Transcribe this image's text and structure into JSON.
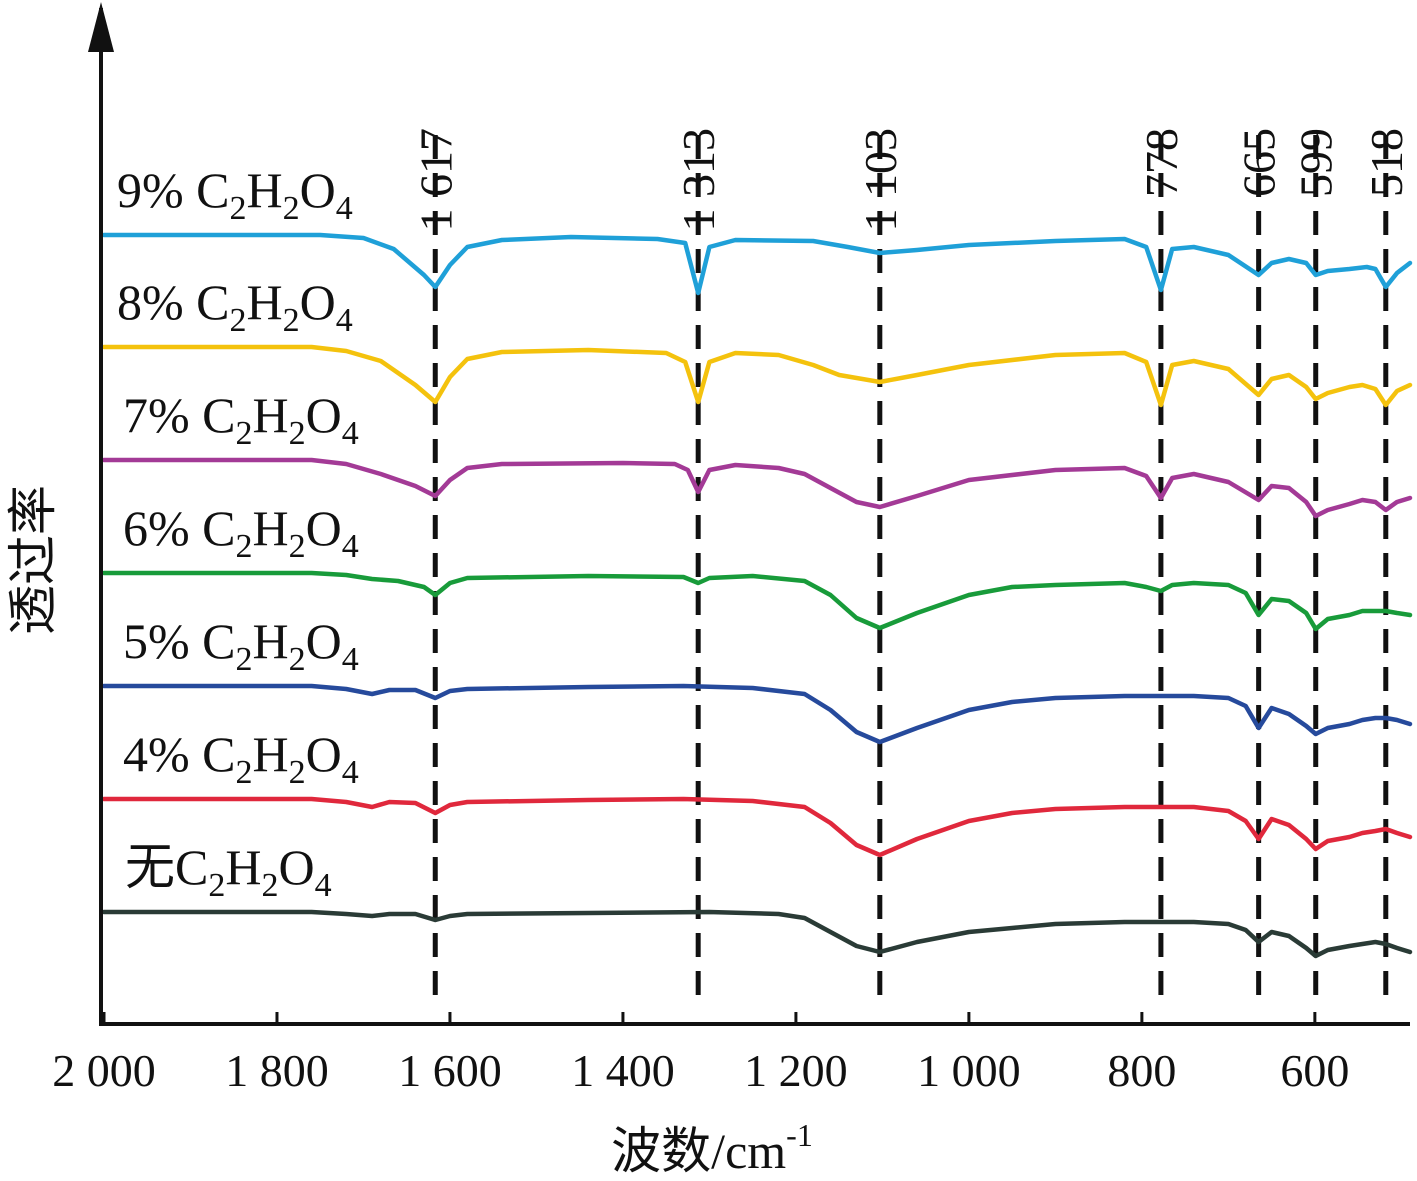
{
  "chart_data": {
    "type": "line",
    "title": "",
    "xlabel": "波数/cm",
    "xlabel_sup": "-1",
    "ylabel": "透过率",
    "x_reversed": true,
    "xlim": [
      2000,
      490
    ],
    "x_ticks": [
      2000,
      1800,
      1600,
      1400,
      1200,
      1000,
      800,
      600
    ],
    "x_tick_labels": [
      "2 000",
      "1 800",
      "1 600",
      "1 400",
      "1 200",
      "1 000",
      "800",
      "600"
    ],
    "y_ticks_shown": false,
    "grid": false,
    "peak_lines": [
      {
        "x": 1617,
        "label": "1 617"
      },
      {
        "x": 1313,
        "label": "1 313"
      },
      {
        "x": 1103,
        "label": "1 103"
      },
      {
        "x": 778,
        "label": "778"
      },
      {
        "x": 665,
        "label": "665"
      },
      {
        "x": 599,
        "label": "599"
      },
      {
        "x": 518,
        "label": "518"
      }
    ],
    "series": [
      {
        "name_main": "9% C",
        "name_sub1": "2",
        "name_mid": "H",
        "name_sub2": "2",
        "name_end": "O",
        "name_sub3": "4",
        "color": "#1fa0d8",
        "offset": 235,
        "points": [
          [
            2000,
            0
          ],
          [
            1750,
            0
          ],
          [
            1700,
            3
          ],
          [
            1665,
            14
          ],
          [
            1630,
            40
          ],
          [
            1617,
            52
          ],
          [
            1600,
            30
          ],
          [
            1580,
            12
          ],
          [
            1540,
            5
          ],
          [
            1460,
            2
          ],
          [
            1360,
            4
          ],
          [
            1328,
            8
          ],
          [
            1313,
            58
          ],
          [
            1300,
            12
          ],
          [
            1270,
            5
          ],
          [
            1180,
            6
          ],
          [
            1140,
            12
          ],
          [
            1103,
            18
          ],
          [
            1060,
            15
          ],
          [
            1000,
            10
          ],
          [
            900,
            6
          ],
          [
            820,
            4
          ],
          [
            795,
            12
          ],
          [
            778,
            55
          ],
          [
            765,
            14
          ],
          [
            740,
            12
          ],
          [
            700,
            20
          ],
          [
            665,
            40
          ],
          [
            650,
            28
          ],
          [
            630,
            24
          ],
          [
            610,
            28
          ],
          [
            599,
            40
          ],
          [
            585,
            36
          ],
          [
            560,
            34
          ],
          [
            540,
            32
          ],
          [
            530,
            34
          ],
          [
            518,
            52
          ],
          [
            505,
            38
          ],
          [
            490,
            28
          ]
        ]
      },
      {
        "name_main": "8% C",
        "name_sub1": "2",
        "name_mid": "H",
        "name_sub2": "2",
        "name_end": "O",
        "name_sub3": "4",
        "color": "#f4c20d",
        "offset": 347,
        "points": [
          [
            2000,
            0
          ],
          [
            1760,
            0
          ],
          [
            1720,
            4
          ],
          [
            1680,
            14
          ],
          [
            1640,
            38
          ],
          [
            1617,
            55
          ],
          [
            1600,
            30
          ],
          [
            1580,
            12
          ],
          [
            1540,
            5
          ],
          [
            1440,
            3
          ],
          [
            1350,
            6
          ],
          [
            1328,
            15
          ],
          [
            1313,
            55
          ],
          [
            1300,
            15
          ],
          [
            1270,
            6
          ],
          [
            1220,
            8
          ],
          [
            1180,
            18
          ],
          [
            1150,
            28
          ],
          [
            1103,
            35
          ],
          [
            1060,
            28
          ],
          [
            1000,
            18
          ],
          [
            900,
            8
          ],
          [
            820,
            6
          ],
          [
            795,
            15
          ],
          [
            778,
            58
          ],
          [
            765,
            18
          ],
          [
            740,
            14
          ],
          [
            700,
            22
          ],
          [
            665,
            48
          ],
          [
            650,
            32
          ],
          [
            630,
            28
          ],
          [
            610,
            40
          ],
          [
            599,
            52
          ],
          [
            585,
            46
          ],
          [
            560,
            40
          ],
          [
            545,
            38
          ],
          [
            530,
            42
          ],
          [
            518,
            58
          ],
          [
            505,
            44
          ],
          [
            490,
            38
          ]
        ]
      },
      {
        "name_main": "7% C",
        "name_sub1": "2",
        "name_mid": "H",
        "name_sub2": "2",
        "name_end": "O",
        "name_sub3": "4",
        "color": "#a33a96",
        "offset": 460,
        "points": [
          [
            2000,
            0
          ],
          [
            1760,
            0
          ],
          [
            1720,
            4
          ],
          [
            1680,
            14
          ],
          [
            1640,
            26
          ],
          [
            1617,
            36
          ],
          [
            1600,
            20
          ],
          [
            1580,
            8
          ],
          [
            1540,
            4
          ],
          [
            1400,
            3
          ],
          [
            1340,
            4
          ],
          [
            1325,
            10
          ],
          [
            1313,
            32
          ],
          [
            1300,
            10
          ],
          [
            1270,
            5
          ],
          [
            1220,
            8
          ],
          [
            1190,
            14
          ],
          [
            1160,
            28
          ],
          [
            1130,
            42
          ],
          [
            1103,
            47
          ],
          [
            1060,
            36
          ],
          [
            1000,
            20
          ],
          [
            900,
            10
          ],
          [
            820,
            8
          ],
          [
            795,
            16
          ],
          [
            778,
            38
          ],
          [
            765,
            18
          ],
          [
            740,
            14
          ],
          [
            700,
            22
          ],
          [
            665,
            40
          ],
          [
            650,
            26
          ],
          [
            630,
            28
          ],
          [
            610,
            42
          ],
          [
            599,
            56
          ],
          [
            585,
            50
          ],
          [
            560,
            44
          ],
          [
            545,
            40
          ],
          [
            530,
            42
          ],
          [
            518,
            50
          ],
          [
            505,
            42
          ],
          [
            490,
            38
          ]
        ]
      },
      {
        "name_main": "6% C",
        "name_sub1": "2",
        "name_mid": "H",
        "name_sub2": "2",
        "name_end": "O",
        "name_sub3": "4",
        "color": "#189b3a",
        "offset": 573,
        "points": [
          [
            2000,
            0
          ],
          [
            1760,
            0
          ],
          [
            1720,
            2
          ],
          [
            1690,
            6
          ],
          [
            1660,
            8
          ],
          [
            1630,
            14
          ],
          [
            1617,
            22
          ],
          [
            1600,
            10
          ],
          [
            1580,
            5
          ],
          [
            1440,
            3
          ],
          [
            1330,
            4
          ],
          [
            1313,
            10
          ],
          [
            1300,
            5
          ],
          [
            1250,
            3
          ],
          [
            1190,
            8
          ],
          [
            1160,
            22
          ],
          [
            1130,
            45
          ],
          [
            1103,
            55
          ],
          [
            1060,
            40
          ],
          [
            1000,
            22
          ],
          [
            950,
            14
          ],
          [
            900,
            12
          ],
          [
            820,
            10
          ],
          [
            795,
            14
          ],
          [
            778,
            18
          ],
          [
            765,
            12
          ],
          [
            740,
            10
          ],
          [
            700,
            12
          ],
          [
            680,
            20
          ],
          [
            665,
            42
          ],
          [
            650,
            26
          ],
          [
            630,
            28
          ],
          [
            610,
            40
          ],
          [
            599,
            56
          ],
          [
            585,
            46
          ],
          [
            560,
            42
          ],
          [
            545,
            38
          ],
          [
            530,
            38
          ],
          [
            518,
            38
          ],
          [
            505,
            40
          ],
          [
            490,
            42
          ]
        ]
      },
      {
        "name_main": "5% C",
        "name_sub1": "2",
        "name_mid": "H",
        "name_sub2": "2",
        "name_end": "O",
        "name_sub3": "4",
        "color": "#264a9c",
        "offset": 686,
        "points": [
          [
            2000,
            0
          ],
          [
            1760,
            0
          ],
          [
            1720,
            3
          ],
          [
            1690,
            8
          ],
          [
            1670,
            4
          ],
          [
            1640,
            4
          ],
          [
            1617,
            12
          ],
          [
            1600,
            5
          ],
          [
            1580,
            3
          ],
          [
            1440,
            1
          ],
          [
            1330,
            0
          ],
          [
            1250,
            2
          ],
          [
            1190,
            8
          ],
          [
            1160,
            24
          ],
          [
            1130,
            46
          ],
          [
            1103,
            56
          ],
          [
            1060,
            42
          ],
          [
            1000,
            24
          ],
          [
            950,
            16
          ],
          [
            900,
            12
          ],
          [
            820,
            10
          ],
          [
            778,
            10
          ],
          [
            740,
            10
          ],
          [
            700,
            12
          ],
          [
            680,
            20
          ],
          [
            665,
            42
          ],
          [
            650,
            22
          ],
          [
            630,
            28
          ],
          [
            610,
            40
          ],
          [
            599,
            48
          ],
          [
            585,
            42
          ],
          [
            560,
            38
          ],
          [
            545,
            34
          ],
          [
            530,
            32
          ],
          [
            518,
            32
          ],
          [
            505,
            34
          ],
          [
            490,
            38
          ]
        ]
      },
      {
        "name_main": "4% C",
        "name_sub1": "2",
        "name_mid": "H",
        "name_sub2": "2",
        "name_end": "O",
        "name_sub3": "4",
        "color": "#e0283c",
        "offset": 799,
        "points": [
          [
            2000,
            0
          ],
          [
            1760,
            0
          ],
          [
            1720,
            3
          ],
          [
            1690,
            8
          ],
          [
            1670,
            3
          ],
          [
            1640,
            4
          ],
          [
            1617,
            14
          ],
          [
            1600,
            6
          ],
          [
            1580,
            3
          ],
          [
            1440,
            1
          ],
          [
            1330,
            0
          ],
          [
            1250,
            2
          ],
          [
            1190,
            8
          ],
          [
            1160,
            24
          ],
          [
            1130,
            46
          ],
          [
            1103,
            56
          ],
          [
            1060,
            40
          ],
          [
            1000,
            22
          ],
          [
            950,
            14
          ],
          [
            900,
            10
          ],
          [
            820,
            8
          ],
          [
            778,
            8
          ],
          [
            740,
            8
          ],
          [
            700,
            12
          ],
          [
            680,
            22
          ],
          [
            665,
            40
          ],
          [
            650,
            20
          ],
          [
            630,
            26
          ],
          [
            610,
            40
          ],
          [
            599,
            50
          ],
          [
            585,
            42
          ],
          [
            560,
            38
          ],
          [
            545,
            34
          ],
          [
            530,
            32
          ],
          [
            518,
            30
          ],
          [
            505,
            34
          ],
          [
            490,
            38
          ]
        ]
      },
      {
        "name_main": "无C",
        "name_sub1": "2",
        "name_mid": "H",
        "name_sub2": "2",
        "name_end": "O",
        "name_sub3": "4",
        "color": "#2a3b36",
        "offset": 912,
        "points": [
          [
            2000,
            0
          ],
          [
            1760,
            0
          ],
          [
            1720,
            2
          ],
          [
            1690,
            4
          ],
          [
            1670,
            2
          ],
          [
            1640,
            2
          ],
          [
            1617,
            8
          ],
          [
            1600,
            4
          ],
          [
            1580,
            2
          ],
          [
            1440,
            1
          ],
          [
            1300,
            0
          ],
          [
            1220,
            2
          ],
          [
            1190,
            6
          ],
          [
            1160,
            20
          ],
          [
            1130,
            34
          ],
          [
            1103,
            40
          ],
          [
            1060,
            30
          ],
          [
            1000,
            20
          ],
          [
            950,
            16
          ],
          [
            900,
            12
          ],
          [
            820,
            10
          ],
          [
            778,
            10
          ],
          [
            740,
            10
          ],
          [
            700,
            12
          ],
          [
            680,
            18
          ],
          [
            665,
            30
          ],
          [
            650,
            20
          ],
          [
            630,
            24
          ],
          [
            610,
            36
          ],
          [
            599,
            44
          ],
          [
            585,
            38
          ],
          [
            560,
            34
          ],
          [
            545,
            32
          ],
          [
            530,
            30
          ],
          [
            518,
            32
          ],
          [
            505,
            36
          ],
          [
            490,
            40
          ]
        ]
      }
    ]
  }
}
